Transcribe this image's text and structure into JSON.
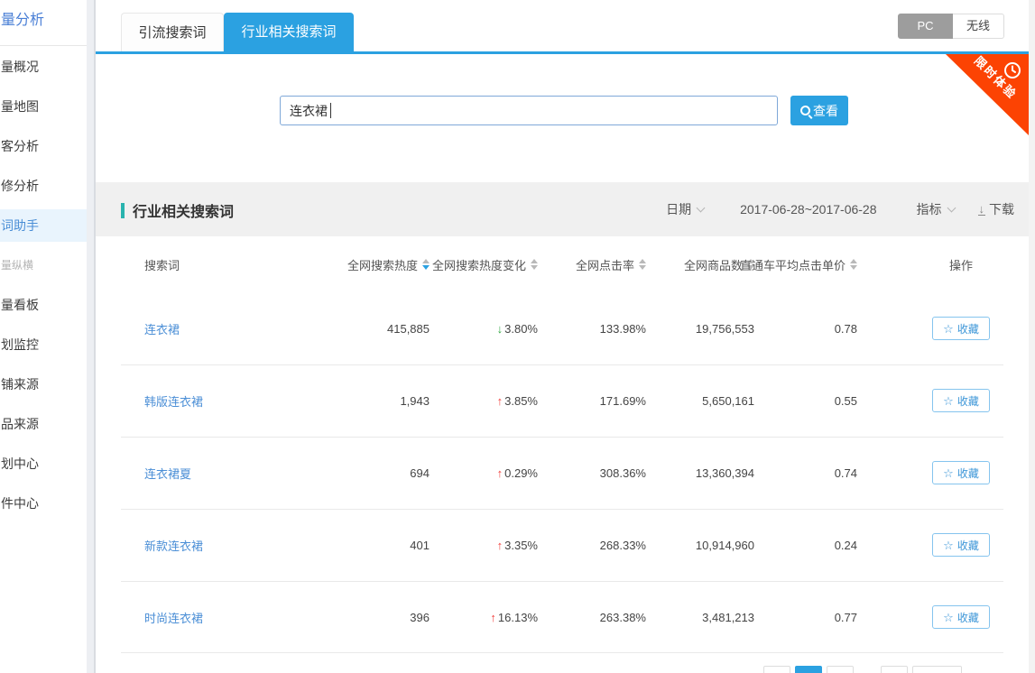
{
  "sidebar": {
    "top_item": "量分析",
    "items": [
      {
        "label": "量概况"
      },
      {
        "label": "量地图"
      },
      {
        "label": "客分析"
      },
      {
        "label": "修分析"
      },
      {
        "label": "词助手",
        "active": true
      },
      {
        "label": "量纵横",
        "muted": true
      },
      {
        "label": "量看板"
      },
      {
        "label": "划监控"
      },
      {
        "label": "铺来源"
      },
      {
        "label": "品来源"
      },
      {
        "label": "划中心"
      },
      {
        "label": "件中心"
      }
    ]
  },
  "tabs": {
    "inactive": "引流搜索词",
    "active": "行业相关搜索词"
  },
  "device_toggle": {
    "pc": "PC",
    "wireless": "无线"
  },
  "ribbon": {
    "label": "限时体验"
  },
  "search": {
    "value": "连衣裙",
    "view_button": "查看"
  },
  "section": {
    "title": "行业相关搜索词",
    "date_label": "日期",
    "date_range": "2017-06-28~2017-06-28",
    "metric_label": "指标",
    "download_label": "下载"
  },
  "table": {
    "headers": {
      "term": "搜索词",
      "heat": "全网搜索热度",
      "change": "全网搜索热度变化",
      "ctr": "全网点击率",
      "products": "全网商品数",
      "cpc": "直通车平均点击单价",
      "action": "操作"
    },
    "favorite_label": "收藏",
    "rows": [
      {
        "term": "连衣裙",
        "heat": "415,885",
        "arrow": "↓",
        "dir": "down",
        "change": "3.80%",
        "ctr": "133.98%",
        "products": "19,756,553",
        "cpc": "0.78"
      },
      {
        "term": "韩版连衣裙",
        "heat": "1,943",
        "arrow": "↑",
        "dir": "up",
        "change": "3.85%",
        "ctr": "171.69%",
        "products": "5,650,161",
        "cpc": "0.55"
      },
      {
        "term": "连衣裙夏",
        "heat": "694",
        "arrow": "↑",
        "dir": "up",
        "change": "0.29%",
        "ctr": "308.36%",
        "products": "13,360,394",
        "cpc": "0.74"
      },
      {
        "term": "新款连衣裙",
        "heat": "401",
        "arrow": "↑",
        "dir": "up",
        "change": "3.35%",
        "ctr": "268.33%",
        "products": "10,914,960",
        "cpc": "0.24"
      },
      {
        "term": "时尚连衣裙",
        "heat": "396",
        "arrow": "↑",
        "dir": "up",
        "change": "16.13%",
        "ctr": "263.38%",
        "products": "3,481,213",
        "cpc": "0.77"
      }
    ]
  },
  "colors": {
    "accent": "#2ba1e1",
    "ribbon": "#fc4303",
    "teal": "#29b3ae",
    "link": "#4a8ed6",
    "up_red": "#f2413e",
    "down_green": "#35a945"
  }
}
